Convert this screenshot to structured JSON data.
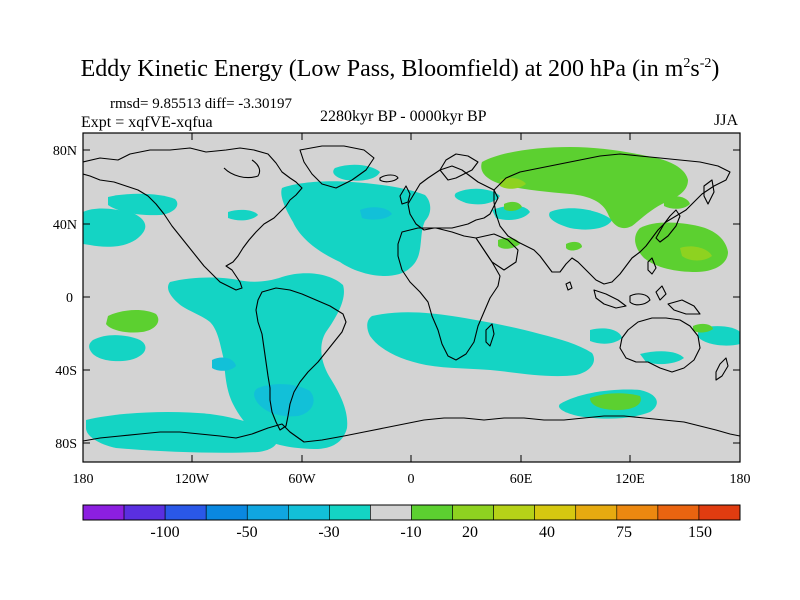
{
  "title": {
    "prefix": "Eddy Kinetic Energy (Low Pass, Bloomfield) at 200 hPa (in m",
    "sup1": "2",
    "mid": "s",
    "sup2": "-2",
    "suffix": ")"
  },
  "stats": {
    "rmsd_line": "rmsd= 9.85513 diff= -3.30197",
    "expt_line": "Expt = xqfVE-xqfua",
    "period": "2280kyr BP - 0000kyr BP",
    "season": "JJA"
  },
  "map": {
    "y_ticks": [
      "80N",
      "40N",
      "0",
      "40S",
      "80S"
    ],
    "x_ticks": [
      "180",
      "120W",
      "60W",
      "0",
      "60E",
      "120E",
      "180"
    ],
    "background_color": "#d3d3d3"
  },
  "colorbar": {
    "labels": [
      "-100",
      "-50",
      "-30",
      "-10",
      "20",
      "40",
      "75",
      "150"
    ],
    "colors": [
      "#8c1fe0",
      "#5a2fe0",
      "#2a58e8",
      "#0a88e0",
      "#10a6e0",
      "#12c0d8",
      "#14d4c4",
      "#d3d3d3",
      "#5cd030",
      "#8ed220",
      "#b6d218",
      "#d6c810",
      "#e6aa10",
      "#ec8810",
      "#ea6410",
      "#e03c10"
    ]
  }
}
